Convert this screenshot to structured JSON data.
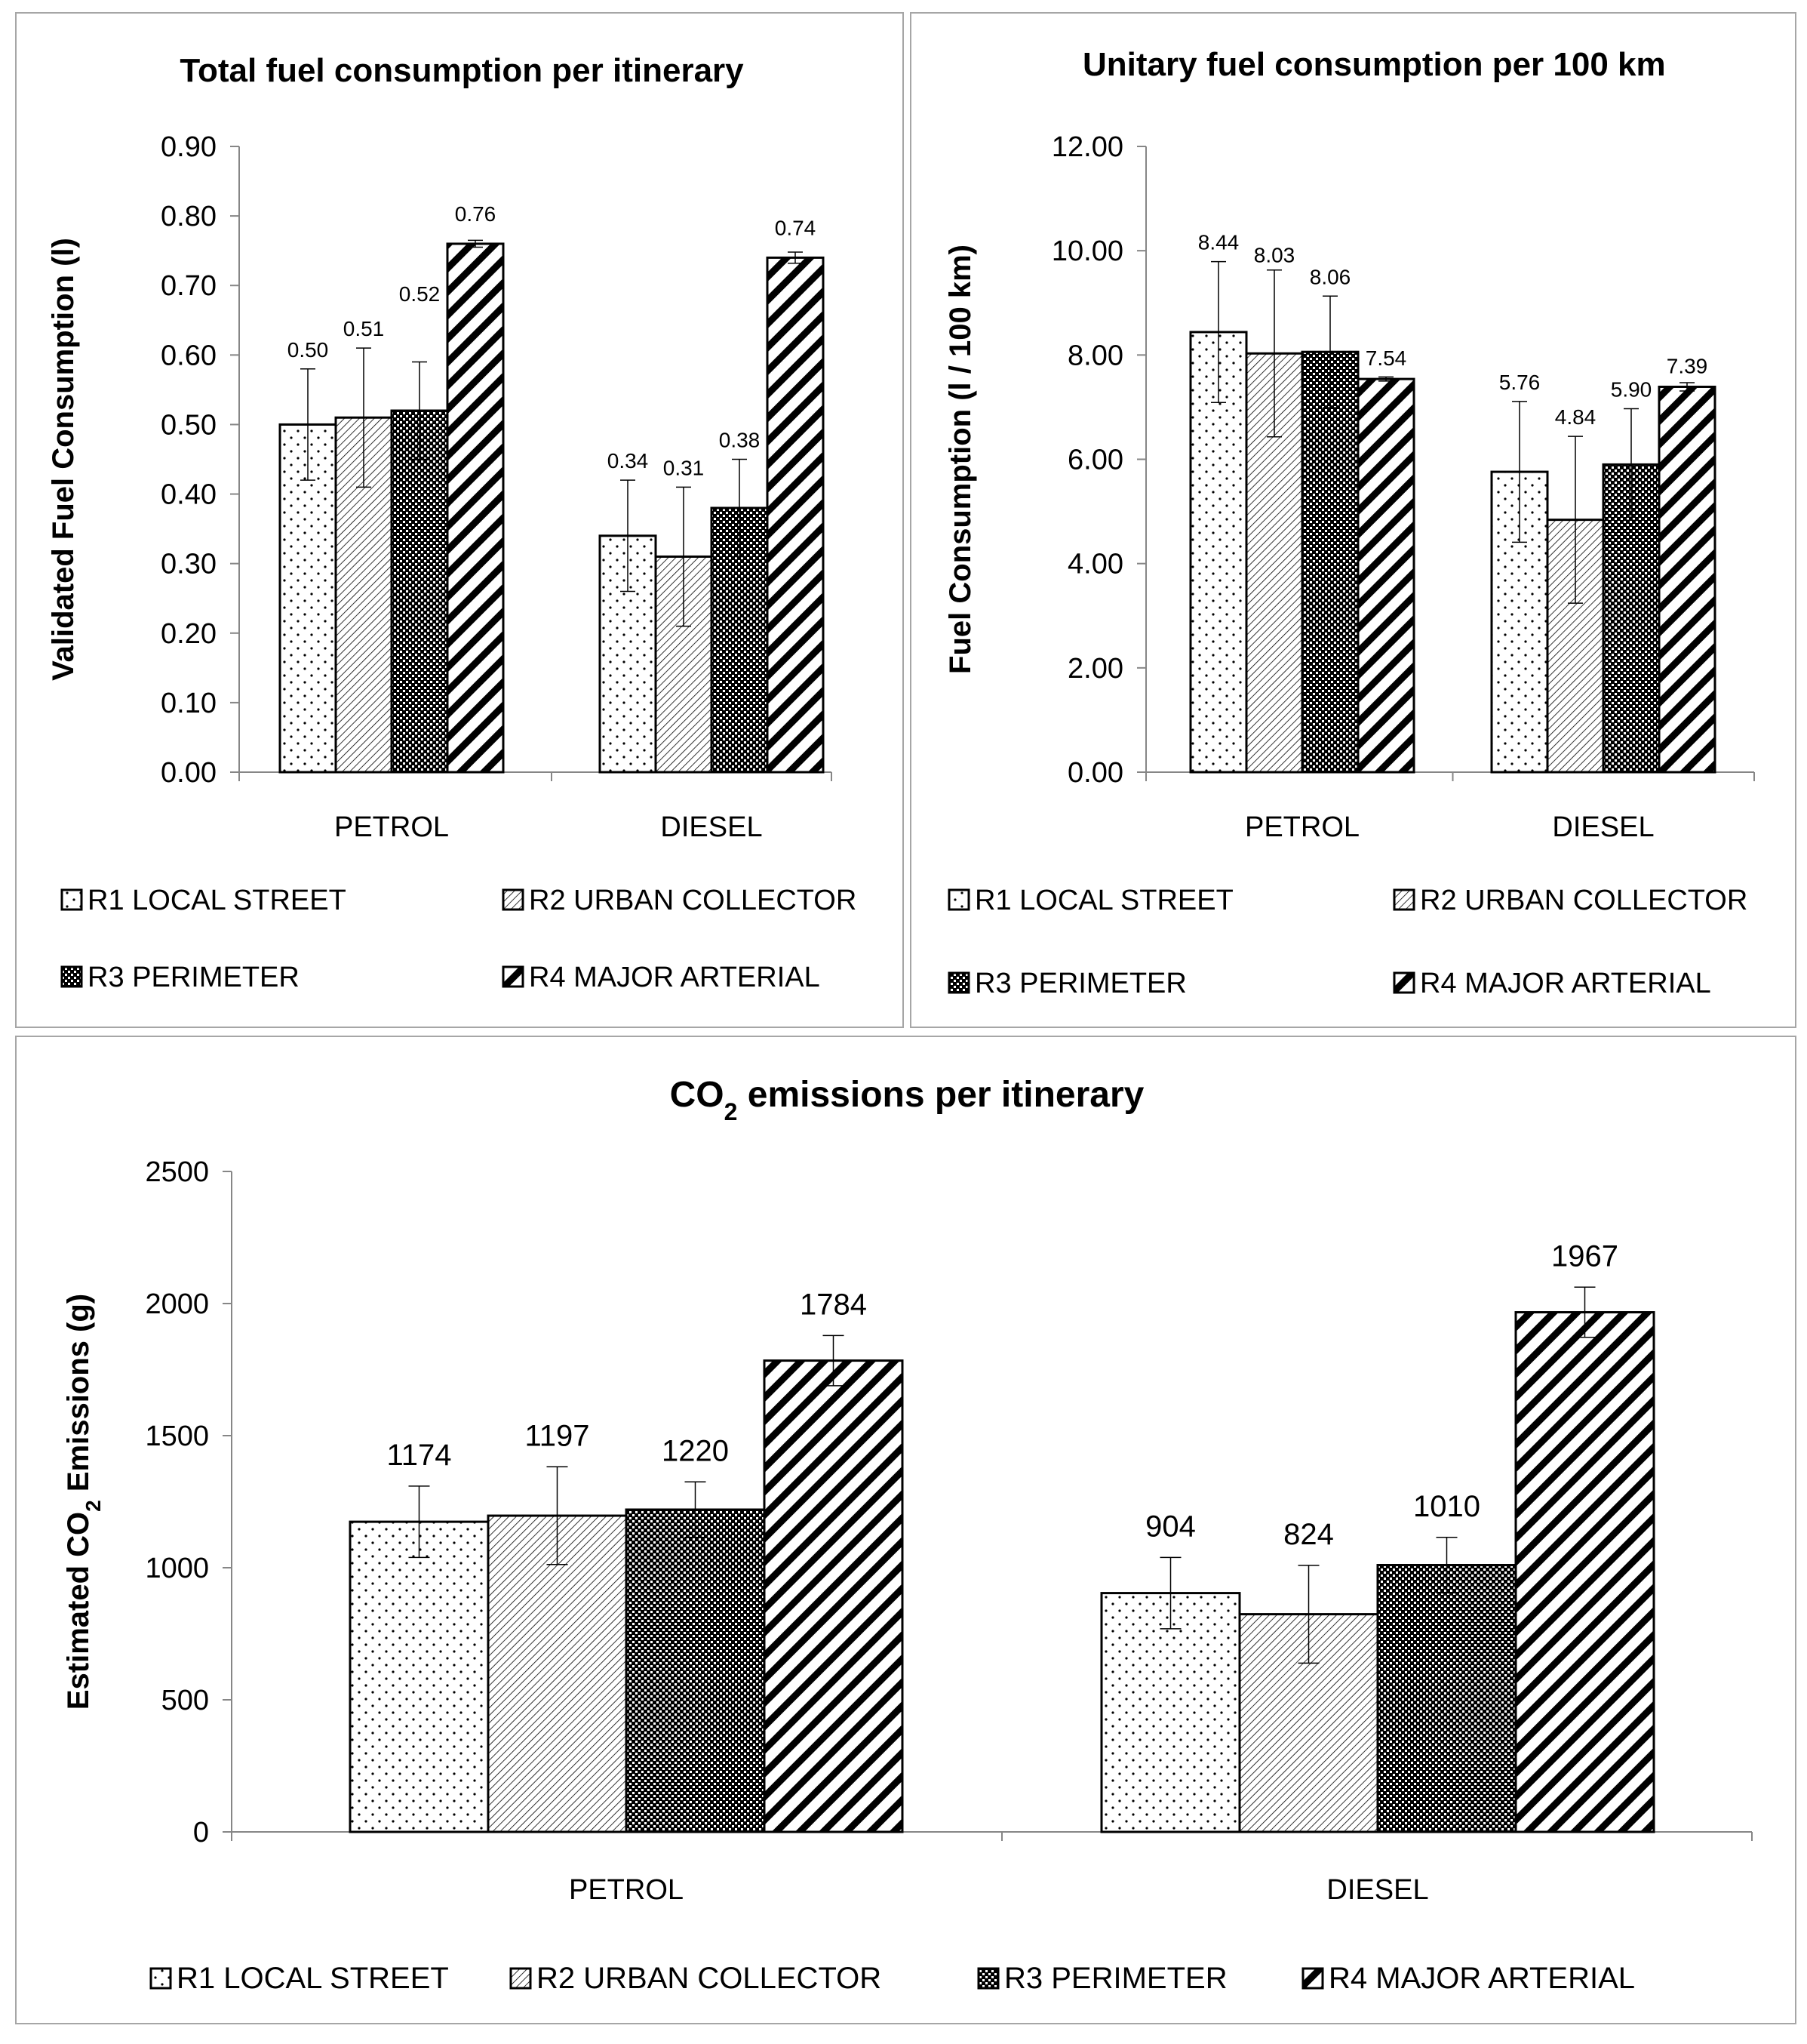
{
  "colors": {
    "bar_stroke": "#000000",
    "axis": "#868686",
    "panel_border": "#a6a6a6",
    "fill": "#ffffff"
  },
  "series_patterns": [
    "dots",
    "diagonal-fine",
    "checker",
    "diagonal-bold"
  ],
  "chart_data": [
    {
      "type": "bar",
      "title": "Total fuel consumption per itinerary",
      "xlabel": "",
      "ylabel": "Validated Fuel Consumption (l)",
      "categories": [
        "PETROL",
        "DIESEL"
      ],
      "ylim": [
        0,
        0.9
      ],
      "yticks": [
        "0.00",
        "0.10",
        "0.20",
        "0.30",
        "0.40",
        "0.50",
        "0.60",
        "0.70",
        "0.80",
        "0.90"
      ],
      "grid": false,
      "legend_position": "bottom",
      "series": [
        {
          "name": "R1 LOCAL STREET",
          "values": [
            0.5,
            0.34
          ],
          "labels": [
            "0.50",
            "0.34"
          ],
          "errors": [
            0.08,
            0.08
          ]
        },
        {
          "name": "R2  URBAN COLLECTOR",
          "values": [
            0.51,
            0.31
          ],
          "labels": [
            "0.51",
            "0.31"
          ],
          "errors": [
            0.1,
            0.1
          ]
        },
        {
          "name": "R3 PERIMETER",
          "values": [
            0.52,
            0.38
          ],
          "labels": [
            "0.52",
            "0.38"
          ],
          "errors": [
            0.07,
            0.07
          ]
        },
        {
          "name": "R4 MAJOR ARTERIAL",
          "values": [
            0.76,
            0.74
          ],
          "labels": [
            "0.76",
            "0.74"
          ],
          "errors": [
            0.005,
            0.008
          ]
        }
      ]
    },
    {
      "type": "bar",
      "title": "Unitary fuel consumption per 100 km",
      "xlabel": "",
      "ylabel": "Fuel Consumption (l / 100 km)",
      "categories": [
        "PETROL",
        "DIESEL"
      ],
      "ylim": [
        0,
        12
      ],
      "yticks": [
        "0.00",
        "2.00",
        "4.00",
        "6.00",
        "8.00",
        "10.00",
        "12.00"
      ],
      "grid": false,
      "legend_position": "bottom",
      "series": [
        {
          "name": "R1 LOCAL STREET",
          "values": [
            8.44,
            5.76
          ],
          "labels": [
            "8.44",
            "5.76"
          ],
          "errors": [
            1.35,
            1.35
          ]
        },
        {
          "name": "R2  URBAN COLLECTOR",
          "values": [
            8.03,
            4.84
          ],
          "labels": [
            "8.03",
            "4.84"
          ],
          "errors": [
            1.6,
            1.6
          ]
        },
        {
          "name": "R3 PERIMETER",
          "values": [
            8.06,
            5.9
          ],
          "labels": [
            "8.06",
            "5.90"
          ],
          "errors": [
            1.07,
            1.07
          ]
        },
        {
          "name": "R4 MAJOR ARTERIAL",
          "values": [
            7.54,
            7.39
          ],
          "labels": [
            "7.54",
            "7.39"
          ],
          "errors": [
            0.04,
            0.08
          ]
        }
      ]
    },
    {
      "type": "bar",
      "title_main": "CO",
      "title_sub": "2",
      "title_rest": " emissions per itinerary",
      "xlabel": "",
      "ylabel_main": "Estimated CO",
      "ylabel_sub": "2",
      "ylabel_rest": "  Emissions (g)",
      "categories": [
        "PETROL",
        "DIESEL"
      ],
      "ylim": [
        0,
        2500
      ],
      "yticks": [
        "0",
        "500",
        "1000",
        "1500",
        "2000",
        "2500"
      ],
      "grid": false,
      "legend_position": "bottom",
      "series": [
        {
          "name": "R1 LOCAL STREET",
          "values": [
            1174,
            904
          ],
          "labels": [
            "1174",
            "904"
          ],
          "errors": [
            135,
            135
          ]
        },
        {
          "name": "R2  URBAN COLLECTOR",
          "values": [
            1197,
            824
          ],
          "labels": [
            "1197",
            "824"
          ],
          "errors": [
            185,
            185
          ]
        },
        {
          "name": "R3 PERIMETER",
          "values": [
            1220,
            1010
          ],
          "labels": [
            "1220",
            "1010"
          ],
          "errors": [
            105,
            105
          ]
        },
        {
          "name": "R4 MAJOR ARTERIAL",
          "values": [
            1784,
            1967
          ],
          "labels": [
            "1784",
            "1967"
          ],
          "errors": [
            95,
            95
          ]
        }
      ]
    }
  ]
}
